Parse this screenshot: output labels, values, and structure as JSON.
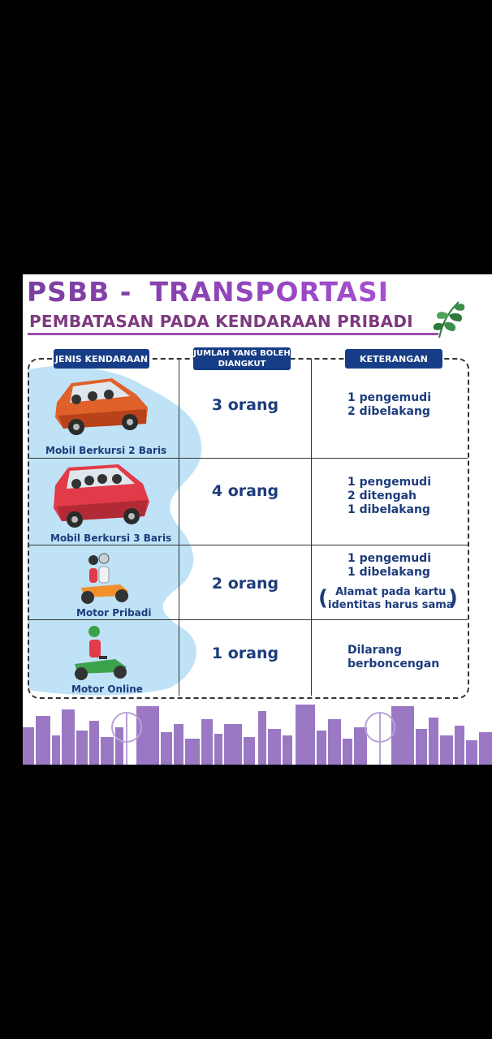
{
  "header": {
    "title_left": "PSBB -",
    "title_right": "TRANSPORTASI",
    "subtitle": "PEMBATASAN PADA KENDARAAN PRIBADI"
  },
  "table": {
    "headers": {
      "vehicle": "JENIS KENDARAAN",
      "capacity": "JUMLAH YANG BOLEH DIANGKUT",
      "notes": "KETERANGAN"
    },
    "rows": [
      {
        "vehicle": "Mobil Berkursi 2 Baris",
        "capacity": "3 orang",
        "notes": [
          "1 pengemudi",
          "2 dibelakang"
        ]
      },
      {
        "vehicle": "Mobil Berkursi 3 Baris",
        "capacity": "4 orang",
        "notes": [
          "1 pengemudi",
          "2 ditengah",
          "1 dibelakang"
        ]
      },
      {
        "vehicle": "Motor Pribadi",
        "capacity": "2 orang",
        "notes": [
          "1 pengemudi",
          "1 dibelakang"
        ],
        "remark": [
          "Alamat pada kartu",
          "identitas harus sama"
        ]
      },
      {
        "vehicle": "Motor Online",
        "capacity": "1 orang",
        "notes": [
          "Dilarang",
          "berboncengan"
        ]
      }
    ]
  },
  "icons": {
    "leaf": "leaf-icon",
    "car_2_row": "orange-car-icon",
    "car_3_row": "red-car-icon",
    "motorbike_private": "motorbike-two-riders-icon",
    "motorbike_online": "motorbike-one-rider-icon",
    "skyline": "city-skyline-icon"
  },
  "colors": {
    "title_purple": "#8c43b3",
    "subtitle_purple": "#7d3a7f",
    "badge_navy": "#173d86",
    "text_navy": "#1c3c7c",
    "blob_blue": "#bfe2f6",
    "skyline_purple": "#9a78c4"
  }
}
